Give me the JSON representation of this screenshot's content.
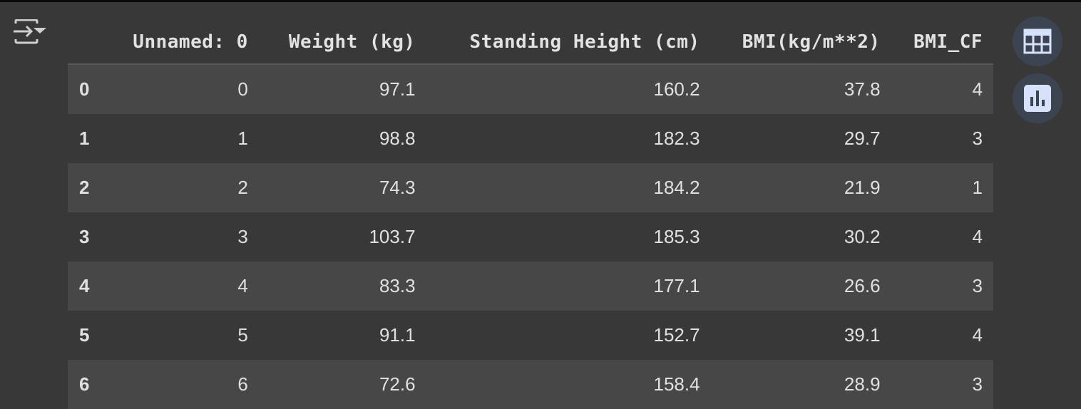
{
  "table": {
    "columns": [
      "",
      "Unnamed: 0",
      "Weight (kg)",
      "Standing Height (cm)",
      "BMI(kg/m**2)",
      "BMI_CF"
    ],
    "rows": [
      [
        "0",
        "0",
        "97.1",
        "160.2",
        "37.8",
        "4"
      ],
      [
        "1",
        "1",
        "98.8",
        "182.3",
        "29.7",
        "3"
      ],
      [
        "2",
        "2",
        "74.3",
        "184.2",
        "21.9",
        "1"
      ],
      [
        "3",
        "3",
        "103.7",
        "185.3",
        "30.2",
        "4"
      ],
      [
        "4",
        "4",
        "83.3",
        "177.1",
        "26.6",
        "3"
      ],
      [
        "5",
        "5",
        "91.1",
        "152.7",
        "39.1",
        "4"
      ],
      [
        "6",
        "6",
        "72.6",
        "158.4",
        "28.9",
        "3"
      ]
    ]
  },
  "icons": {
    "filter": "filter-icon",
    "table_view": "table-icon",
    "chart_suggest": "bar-chart-icon"
  },
  "colors": {
    "background": "#383838",
    "row_stripe": "#474747",
    "button_bg": "#3c4451",
    "button_icon": "#d6e2fb"
  }
}
